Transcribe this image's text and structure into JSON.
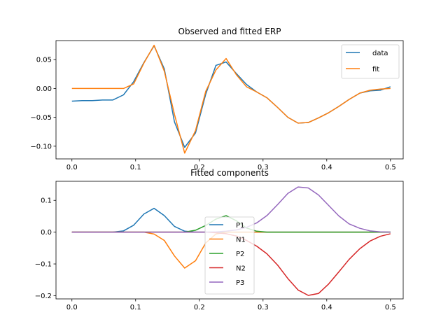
{
  "chart_data": [
    {
      "type": "line",
      "title": "Observed and fitted ERP",
      "xlabel": "",
      "ylabel": "",
      "xlim": [
        -0.025,
        0.52
      ],
      "ylim": [
        -0.122,
        0.083
      ],
      "xticks": [
        0.0,
        0.1,
        0.2,
        0.3,
        0.4,
        0.5
      ],
      "xtick_labels": [
        "0.0",
        "0.1",
        "0.2",
        "0.3",
        "0.4",
        "0.5"
      ],
      "yticks": [
        -0.1,
        -0.05,
        0.0,
        0.05
      ],
      "ytick_labels": [
        "−0.10",
        "−0.05",
        "0.00",
        "0.05"
      ],
      "grid": false,
      "legend_position": "top-right",
      "x": [
        0.0,
        0.016,
        0.032,
        0.048,
        0.064,
        0.081,
        0.097,
        0.113,
        0.129,
        0.145,
        0.161,
        0.177,
        0.194,
        0.21,
        0.226,
        0.242,
        0.258,
        0.274,
        0.29,
        0.306,
        0.323,
        0.339,
        0.355,
        0.371,
        0.387,
        0.403,
        0.419,
        0.435,
        0.452,
        0.468,
        0.484,
        0.5
      ],
      "series": [
        {
          "name": "data",
          "color": "#1f77b4",
          "values": [
            -0.022,
            -0.021,
            -0.021,
            -0.02,
            -0.02,
            -0.011,
            0.012,
            0.045,
            0.074,
            0.034,
            -0.058,
            -0.102,
            -0.077,
            -0.01,
            0.04,
            0.046,
            0.026,
            0.007,
            -0.006,
            -0.016,
            -0.033,
            -0.05,
            -0.06,
            -0.059,
            -0.051,
            -0.042,
            -0.031,
            -0.019,
            -0.008,
            -0.004,
            -0.003,
            0.003
          ]
        },
        {
          "name": "fit",
          "color": "#ff7f0e",
          "values": [
            0.0,
            0.0,
            0.0,
            0.0,
            0.0,
            0.0,
            0.008,
            0.044,
            0.075,
            0.03,
            -0.045,
            -0.112,
            -0.073,
            -0.005,
            0.032,
            0.052,
            0.024,
            0.003,
            -0.006,
            -0.016,
            -0.033,
            -0.05,
            -0.06,
            -0.059,
            -0.051,
            -0.042,
            -0.031,
            -0.019,
            -0.008,
            -0.003,
            -0.001,
            0.0
          ]
        }
      ]
    },
    {
      "type": "line",
      "title": "Fitted components",
      "xlabel": "",
      "ylabel": "",
      "xlim": [
        -0.025,
        0.52
      ],
      "ylim": [
        -0.21,
        0.16
      ],
      "xticks": [
        0.0,
        0.1,
        0.2,
        0.3,
        0.4,
        0.5
      ],
      "xtick_labels": [
        "0.0",
        "0.1",
        "0.2",
        "0.3",
        "0.4",
        "0.5"
      ],
      "yticks": [
        -0.2,
        -0.1,
        0.0,
        0.1
      ],
      "ytick_labels": [
        "−0.2",
        "−0.1",
        "0.0",
        "0.1"
      ],
      "grid": false,
      "legend_position": "center",
      "x": [
        0.0,
        0.016,
        0.032,
        0.048,
        0.064,
        0.081,
        0.097,
        0.113,
        0.129,
        0.145,
        0.161,
        0.177,
        0.194,
        0.21,
        0.226,
        0.242,
        0.258,
        0.274,
        0.29,
        0.306,
        0.323,
        0.339,
        0.355,
        0.371,
        0.387,
        0.403,
        0.419,
        0.435,
        0.452,
        0.468,
        0.484,
        0.5
      ],
      "series": [
        {
          "name": "P1",
          "color": "#1f77b4",
          "values": [
            0.0,
            0.0,
            0.0,
            0.0,
            0.0,
            0.004,
            0.022,
            0.057,
            0.075,
            0.052,
            0.018,
            0.003,
            0.0,
            0.0,
            0.0,
            0.0,
            0.0,
            0.0,
            0.0,
            0.0,
            0.0,
            0.0,
            0.0,
            0.0,
            0.0,
            0.0,
            0.0,
            0.0,
            0.0,
            0.0,
            0.0,
            0.0
          ]
        },
        {
          "name": "N1",
          "color": "#ff7f0e",
          "values": [
            0.0,
            0.0,
            0.0,
            0.0,
            0.0,
            0.0,
            0.0,
            0.0,
            -0.006,
            -0.026,
            -0.075,
            -0.113,
            -0.09,
            -0.034,
            -0.006,
            0.0,
            0.0,
            0.0,
            0.0,
            0.0,
            0.0,
            0.0,
            0.0,
            0.0,
            0.0,
            0.0,
            0.0,
            0.0,
            0.0,
            0.0,
            0.0,
            0.0
          ]
        },
        {
          "name": "P2",
          "color": "#2ca02c",
          "values": [
            0.0,
            0.0,
            0.0,
            0.0,
            0.0,
            0.0,
            0.0,
            0.0,
            0.0,
            0.0,
            0.0,
            0.0,
            0.006,
            0.021,
            0.041,
            0.052,
            0.036,
            0.013,
            0.003,
            0.0,
            0.0,
            0.0,
            0.0,
            0.0,
            0.0,
            0.0,
            0.0,
            0.0,
            0.0,
            0.0,
            0.0,
            0.0
          ]
        },
        {
          "name": "N2",
          "color": "#d62728",
          "values": [
            0.0,
            0.0,
            0.0,
            0.0,
            0.0,
            0.0,
            0.0,
            0.0,
            0.0,
            0.0,
            0.0,
            0.0,
            0.0,
            0.0,
            -0.002,
            -0.005,
            -0.012,
            -0.026,
            -0.044,
            -0.068,
            -0.104,
            -0.146,
            -0.182,
            -0.199,
            -0.193,
            -0.163,
            -0.125,
            -0.086,
            -0.052,
            -0.028,
            -0.013,
            -0.005
          ]
        },
        {
          "name": "P3",
          "color": "#9467bd",
          "values": [
            0.0,
            0.0,
            0.0,
            0.0,
            0.0,
            0.0,
            0.0,
            0.0,
            0.0,
            0.0,
            0.0,
            0.0,
            0.0,
            0.0,
            0.001,
            0.003,
            0.007,
            0.015,
            0.029,
            0.052,
            0.087,
            0.122,
            0.142,
            0.139,
            0.117,
            0.084,
            0.051,
            0.026,
            0.012,
            0.004,
            0.001,
            0.0
          ]
        }
      ]
    }
  ]
}
